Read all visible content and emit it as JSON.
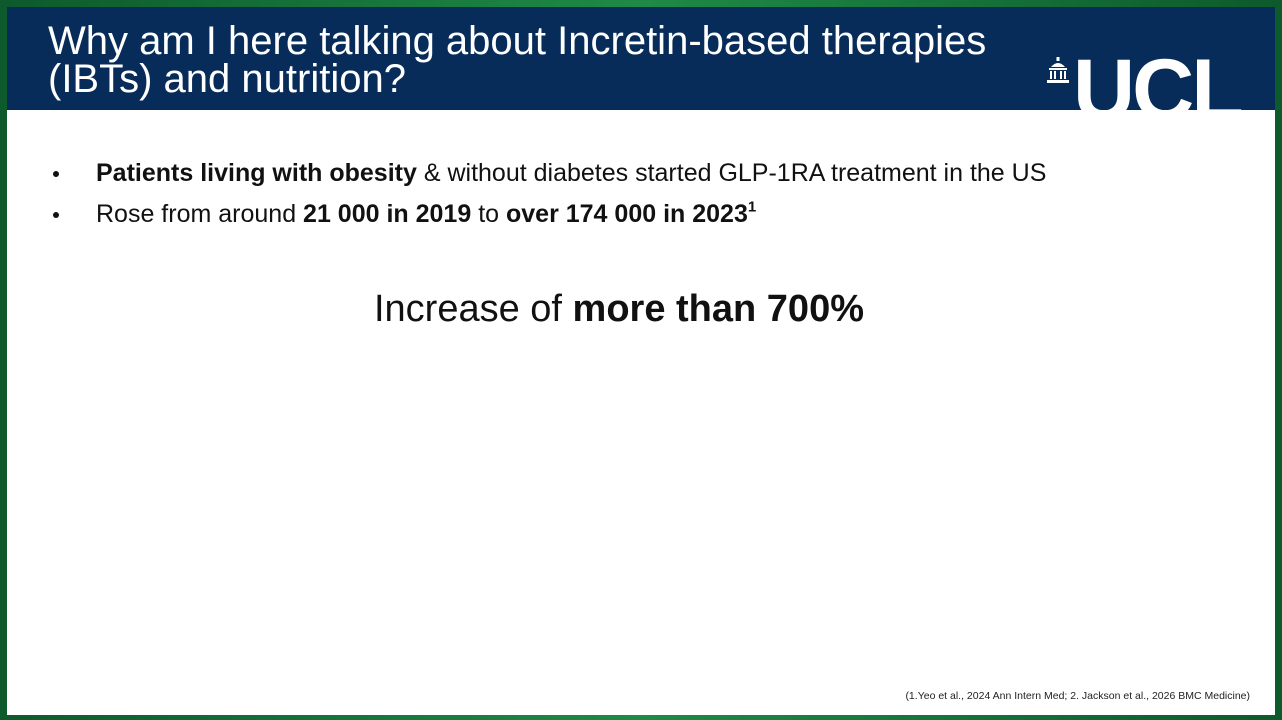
{
  "header": {
    "title_lines": [
      "Why am I here talking about Incretin-based therapies",
      "(IBTs) and nutrition?"
    ],
    "logo": "UCL"
  },
  "bullets": [
    [
      {
        "text": "Patients living with obesity",
        "bold": true
      },
      {
        "text": " & without diabetes started GLP-1RA treatment in the US",
        "bold": false
      }
    ],
    [
      {
        "text": "Rose from around ",
        "bold": false
      },
      {
        "text": "21 000 in 2019",
        "bold": true
      },
      {
        "text": " to ",
        "bold": false
      },
      {
        "text": "over 174 000 in 2023",
        "bold": true
      },
      {
        "text": "1",
        "bold": true,
        "sup": true
      }
    ]
  ],
  "statement": [
    {
      "text": "Increase of ",
      "bold": false
    },
    {
      "text": "more than 700%",
      "bold": true
    }
  ],
  "footnote": "(1.Yeo et al., 2024 Ann Intern Med; 2. Jackson et al., 2026 BMC Medicine)"
}
